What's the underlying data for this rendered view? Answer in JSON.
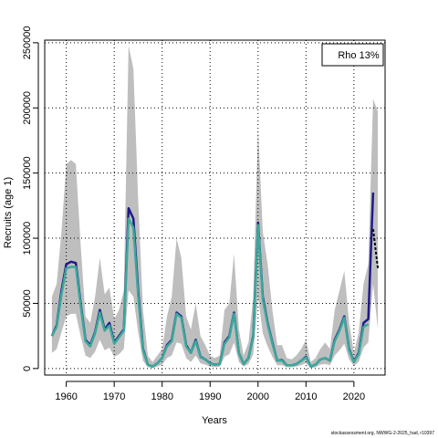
{
  "chart_data": {
    "type": "line",
    "xlabel": "Years",
    "ylabel": "Recruits (age 1)",
    "xlim": [
      1955.5,
      2026.5
    ],
    "ylim": [
      -5000,
      252000
    ],
    "x_ticks": [
      1960,
      1970,
      1980,
      1990,
      2000,
      2010,
      2020
    ],
    "x_tick_labels": [
      "1960",
      "1970",
      "1980",
      "1990",
      "2000",
      "2010",
      "2020"
    ],
    "y_ticks": [
      0,
      50000,
      100000,
      150000,
      200000,
      250000
    ],
    "y_tick_labels": [
      "0",
      "50000",
      "100000",
      "150000",
      "200000",
      "250000"
    ],
    "grid": true,
    "legend": {
      "placement": "top-right",
      "text": "Rho 13%"
    },
    "colors": {
      "band": "#bebebe",
      "base": "#1f1a8a",
      "retro": "#3aa89a",
      "forecast": "#000000"
    },
    "years": [
      1957,
      1958,
      1959,
      1960,
      1961,
      1962,
      1963,
      1964,
      1965,
      1966,
      1967,
      1968,
      1969,
      1970,
      1971,
      1972,
      1973,
      1974,
      1975,
      1976,
      1977,
      1978,
      1979,
      1980,
      1981,
      1982,
      1983,
      1984,
      1985,
      1986,
      1987,
      1988,
      1989,
      1990,
      1991,
      1992,
      1993,
      1994,
      1995,
      1996,
      1997,
      1998,
      1999,
      2000,
      2001,
      2002,
      2003,
      2004,
      2005,
      2006,
      2007,
      2008,
      2009,
      2010,
      2011,
      2012,
      2013,
      2014,
      2015,
      2016,
      2017,
      2018,
      2019,
      2020,
      2021,
      2022,
      2023,
      2024
    ],
    "series": [
      {
        "values": [
          25000,
          33000,
          60000,
          80000,
          82000,
          81000,
          50000,
          22000,
          18000,
          28000,
          45000,
          30000,
          35000,
          20000,
          25000,
          30000,
          123000,
          115000,
          60000,
          15000,
          3000,
          1500,
          4000,
          8000,
          18000,
          22000,
          43000,
          40000,
          18000,
          12000,
          22000,
          9000,
          7000,
          4000,
          3000,
          3500,
          20000,
          25000,
          43000,
          12000,
          3500,
          8000,
          25000,
          112000,
          55000,
          35000,
          20000,
          6000,
          6500,
          2500,
          2500,
          3500,
          6000,
          9000,
          1500,
          3000,
          7000,
          8000,
          6000,
          22000,
          30000,
          40000,
          15000,
          5000,
          12000,
          35000,
          38000,
          135000
        ]
      },
      {
        "values": [
          25000,
          32000,
          57000,
          77000,
          78000,
          78000,
          48000,
          21000,
          17000,
          27000,
          43000,
          29000,
          33000,
          19000,
          24000,
          29000,
          115000,
          108000,
          56000,
          14000,
          3000,
          1500,
          4000,
          8000,
          17000,
          21000,
          42000,
          39000,
          17000,
          12000,
          21000,
          8500,
          7000,
          3800,
          3000,
          3500,
          19000,
          24000,
          42000,
          12000,
          3500,
          8000,
          24000,
          110000,
          53000,
          34000,
          19000,
          6000,
          6000,
          2500,
          2500,
          3500,
          6000,
          8500,
          1500,
          3000,
          7000,
          8000,
          6000,
          21000,
          29000,
          39000,
          14000,
          5000,
          11000,
          32000,
          34000
        ]
      },
      {
        "x": [
          2024,
          2025
        ],
        "values": [
          107000,
          77000
        ]
      }
    ],
    "band_upper": [
      55000,
      65000,
      105000,
      157000,
      160000,
      157000,
      95000,
      40000,
      35000,
      55000,
      85000,
      57000,
      62000,
      38000,
      45000,
      60000,
      248000,
      230000,
      130000,
      45000,
      10000,
      5000,
      10000,
      15000,
      40000,
      55000,
      100000,
      85000,
      40000,
      30000,
      50000,
      25000,
      18000,
      10000,
      8000,
      10000,
      45000,
      50000,
      88000,
      30000,
      10000,
      20000,
      55000,
      185000,
      105000,
      80000,
      45000,
      18000,
      18000,
      8000,
      7000,
      10000,
      15000,
      22000,
      5000,
      8000,
      15000,
      20000,
      15000,
      45000,
      60000,
      75000,
      35000,
      12000,
      28000,
      65000,
      80000,
      207000
    ],
    "band_lower": [
      12000,
      15000,
      28000,
      40000,
      42000,
      42000,
      25000,
      10000,
      8000,
      13000,
      22000,
      14000,
      16000,
      9000,
      11000,
      15000,
      60000,
      55000,
      28000,
      6000,
      1000,
      500,
      1500,
      3000,
      8000,
      10000,
      20000,
      19000,
      8000,
      5000,
      10000,
      4000,
      3000,
      1500,
      1000,
      1500,
      9000,
      11000,
      20000,
      5000,
      1500,
      3500,
      11000,
      55000,
      27000,
      17000,
      9000,
      2500,
      2500,
      1000,
      1000,
      1500,
      2500,
      4000,
      500,
      1000,
      3000,
      3500,
      2500,
      10000,
      14000,
      19000,
      7000,
      2000,
      5000,
      16000,
      20000,
      65000
    ],
    "band_ext": {
      "x": [
        2025
      ],
      "upper": [
        197000
      ],
      "lower": [
        30000
      ]
    }
  },
  "footnote": "stockassessment.org, NWWG-2-2025_had, r10397"
}
